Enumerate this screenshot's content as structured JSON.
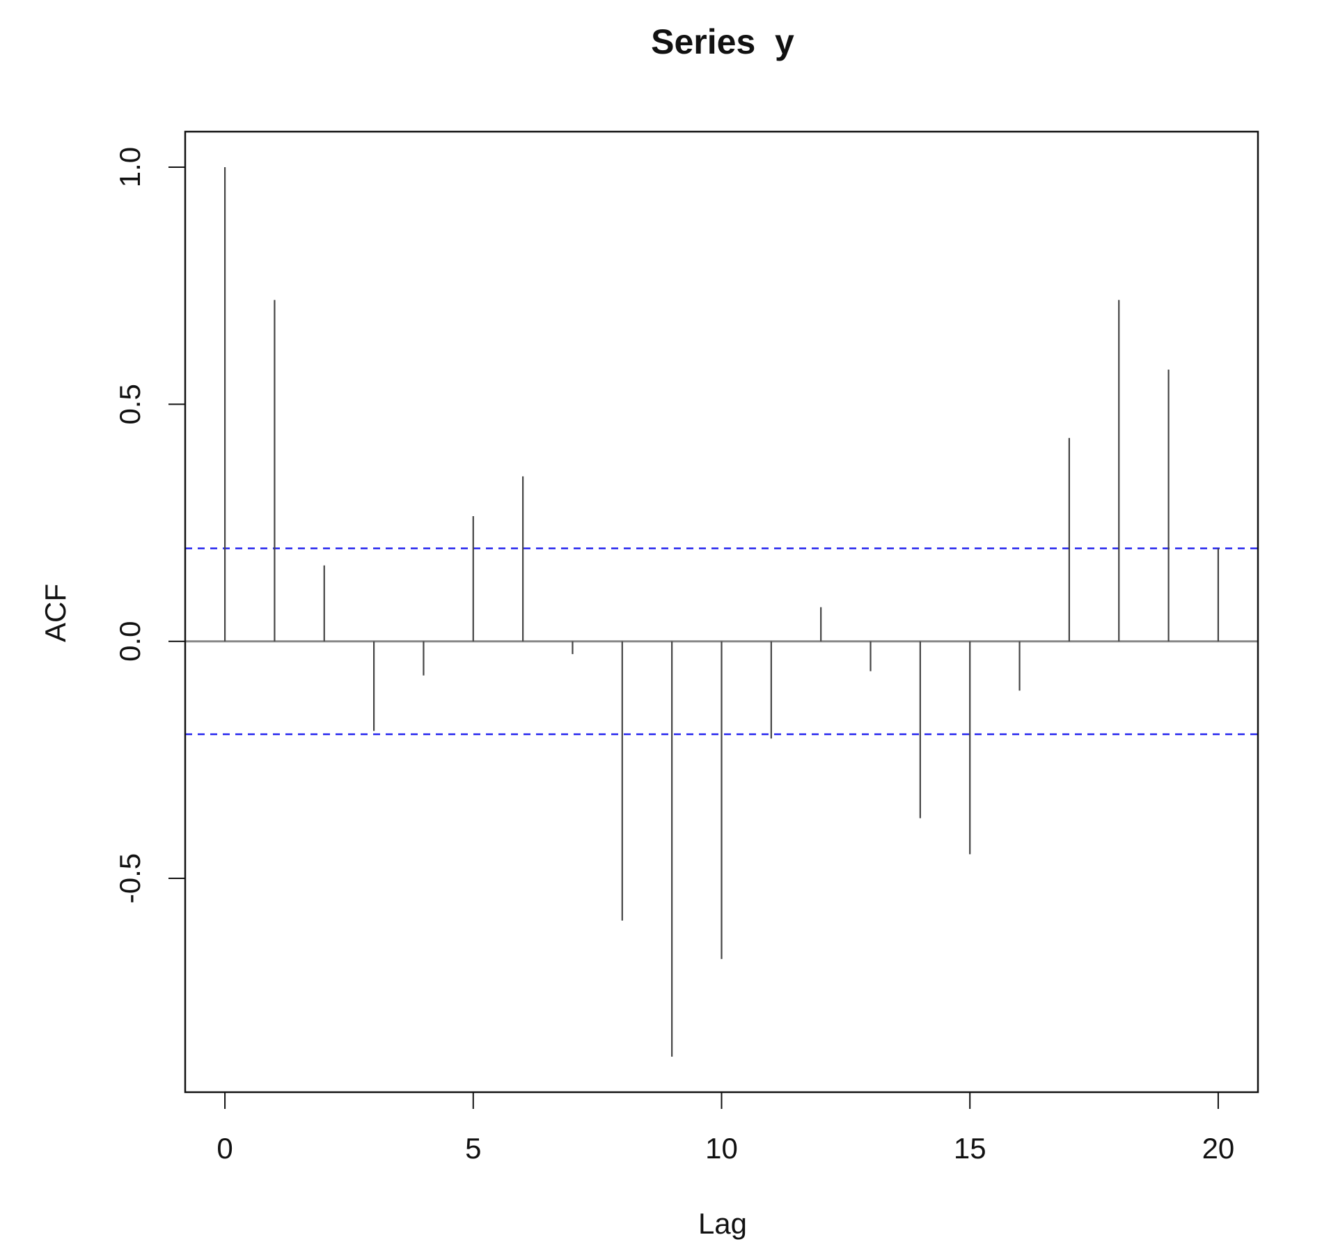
{
  "chart_data": {
    "type": "stem",
    "title": "Series  y",
    "x_label": "Lag",
    "y_label": "ACF",
    "x": [
      0,
      1,
      2,
      3,
      4,
      5,
      6,
      7,
      8,
      9,
      10,
      11,
      12,
      13,
      14,
      15,
      16,
      17,
      18,
      19,
      20
    ],
    "values": [
      1.0,
      0.72,
      0.16,
      -0.189,
      -0.072,
      0.264,
      0.348,
      -0.027,
      -0.589,
      -0.876,
      -0.67,
      -0.205,
      0.072,
      -0.063,
      -0.373,
      -0.449,
      -0.104,
      0.429,
      0.72,
      0.573,
      0.196
    ],
    "color": "#444444",
    "ci_lines": [
      0.196,
      -0.196
    ],
    "ci_color": "#2222ee",
    "zero_line_color": "#888888",
    "xlim": [
      -0.8,
      20.8
    ],
    "ylim": [
      -0.951,
      1.075
    ],
    "xticks": [
      0,
      5,
      10,
      15,
      20
    ],
    "yticks": [
      -0.5,
      {
        "value": 0,
        "label": "0.0"
      },
      0.5,
      {
        "value": 1,
        "label": "1.0"
      }
    ]
  }
}
